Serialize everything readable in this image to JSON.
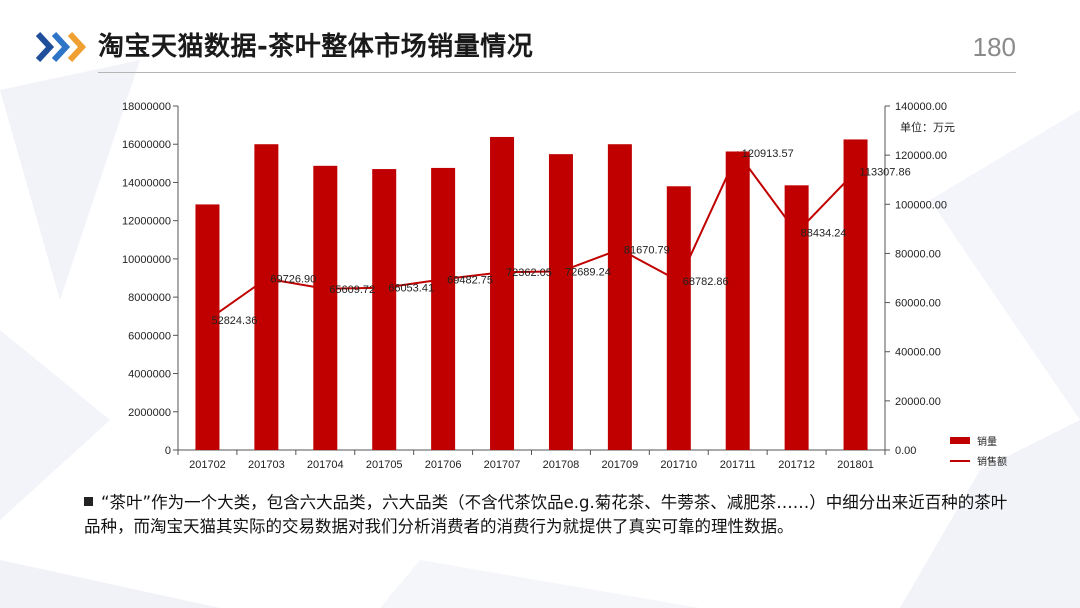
{
  "slide": {
    "title": "淘宝天猫数据-茶叶整体市场销量情况",
    "page_number": "180",
    "note": "“茶叶”作为一个大类，包含六大品类，六大品类（不含代茶饮品e.g.菊花茶、牛蒡茶、减肥茶……）中细分出来近百种的茶叶品种，而淘宝天猫其实际的交易数据对我们分析消费者的消费行为就提供了真实可靠的理性数据。",
    "accent_color": "#c00000",
    "chevron_colors": [
      "#1f4e9a",
      "#2e75c7",
      "#f0a030"
    ]
  },
  "chart_data": {
    "type": "bar",
    "categories": [
      "201702",
      "201703",
      "201704",
      "201705",
      "201706",
      "201707",
      "201708",
      "201709",
      "201710",
      "201711",
      "201712",
      "201801"
    ],
    "series": [
      {
        "name": "销量",
        "type": "bar",
        "axis": "left",
        "color": "#c00000",
        "values": [
          12850000,
          16000000,
          14870000,
          14700000,
          14760000,
          16380000,
          15480000,
          16000000,
          13800000,
          15620000,
          13850000,
          16250000
        ]
      },
      {
        "name": "销售额",
        "type": "line",
        "axis": "right",
        "color": "#c00000",
        "values": [
          52824.36,
          69726.9,
          65609.72,
          66053.41,
          69482.75,
          72362.05,
          72689.24,
          81670.79,
          68782.86,
          120913.57,
          88434.24,
          113307.86
        ],
        "labels": [
          "52824.36",
          "69726.90",
          "65609.72",
          "66053.41",
          "69482.75",
          "72362.05",
          "72689.24",
          "81670.79",
          "68782.86",
          "120913.57",
          "88434.24",
          "113307.86"
        ]
      }
    ],
    "y_left": {
      "ylim": [
        0,
        18000000
      ],
      "ticks": [
        "0",
        "2000000",
        "4000000",
        "6000000",
        "8000000",
        "10000000",
        "12000000",
        "14000000",
        "16000000",
        "18000000"
      ]
    },
    "y_right": {
      "ylim": [
        0,
        140000
      ],
      "ticks": [
        "0.00",
        "20000.00",
        "40000.00",
        "60000.00",
        "80000.00",
        "100000.00",
        "120000.00",
        "140000.00"
      ],
      "unit_label": "单位：万元"
    },
    "legend": {
      "placement": "bottom-right"
    },
    "grid": false
  }
}
